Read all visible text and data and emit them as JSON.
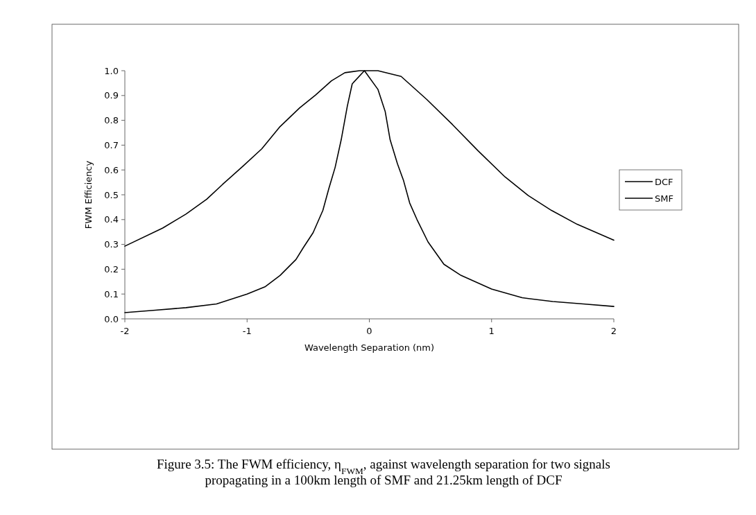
{
  "chart_data": {
    "type": "line",
    "xlabel": "Wavelength Separation (nm)",
    "ylabel": "FWM Efficiency",
    "xlim": [
      -2,
      2
    ],
    "xticks": [
      -2,
      -1,
      0,
      1,
      2
    ],
    "ylim": [
      0,
      1
    ],
    "yticks": [
      {
        "value": 0,
        "label": "0.0"
      },
      {
        "value": 0.1,
        "label": "0.1"
      },
      {
        "value": 0.2,
        "label": "0.2"
      },
      {
        "value": 0.3,
        "label": "0.3"
      },
      {
        "value": 0.4,
        "label": "0.4"
      },
      {
        "value": 0.5,
        "label": "0.5"
      },
      {
        "value": 0.6,
        "label": "0.6"
      },
      {
        "value": 0.7,
        "label": "0.7"
      },
      {
        "value": 0.8,
        "label": "0.8"
      },
      {
        "value": 0.9,
        "label": "0.9"
      },
      {
        "value": 1,
        "label": "1.0"
      }
    ],
    "grid": false,
    "legend": "right",
    "marker": "none",
    "line_style": "solid",
    "series": [
      {
        "name": "DCF",
        "color": "#000000",
        "x": [
          -2,
          -1.75,
          -1.5,
          -1.25,
          -1,
          -0.85,
          -0.73,
          -0.6,
          -0.54,
          -0.46,
          -0.38,
          -0.33,
          -0.28,
          -0.23,
          -0.18,
          -0.14,
          -0.04,
          0.07,
          0.13,
          0.17,
          0.23,
          0.28,
          0.33,
          0.39,
          0.48,
          0.61,
          0.75,
          1,
          1.25,
          1.5,
          1.75,
          2
        ],
        "values": [
          0.025,
          0.035,
          0.045,
          0.06,
          0.1,
          0.13,
          0.175,
          0.239,
          0.287,
          0.347,
          0.437,
          0.527,
          0.61,
          0.722,
          0.857,
          0.947,
          1,
          0.925,
          0.835,
          0.722,
          0.625,
          0.557,
          0.467,
          0.4,
          0.31,
          0.22,
          0.175,
          0.12,
          0.085,
          0.07,
          0.06,
          0.05
        ]
      },
      {
        "name": "SMF",
        "color": "#000000",
        "x": [
          -2,
          -1.69,
          -1.5,
          -1.33,
          -1.2,
          -1.03,
          -0.88,
          -0.73,
          -0.57,
          -0.44,
          -0.31,
          -0.2,
          -0.08,
          -0.04,
          0.07,
          0.26,
          0.47,
          0.68,
          0.89,
          1.11,
          1.3,
          1.49,
          1.7,
          2
        ],
        "values": [
          0.293,
          0.366,
          0.422,
          0.482,
          0.542,
          0.617,
          0.685,
          0.775,
          0.85,
          0.902,
          0.959,
          0.992,
          1,
          1,
          1,
          0.977,
          0.884,
          0.783,
          0.677,
          0.572,
          0.497,
          0.437,
          0.381,
          0.317
        ]
      }
    ],
    "annotations": [
      "Figure 3.5: The FWM efficiency, η$_{FWM}$, against wavelength separation for two signals propagating in a 100km length of SMF and 21.25km length of DCF"
    ]
  }
}
